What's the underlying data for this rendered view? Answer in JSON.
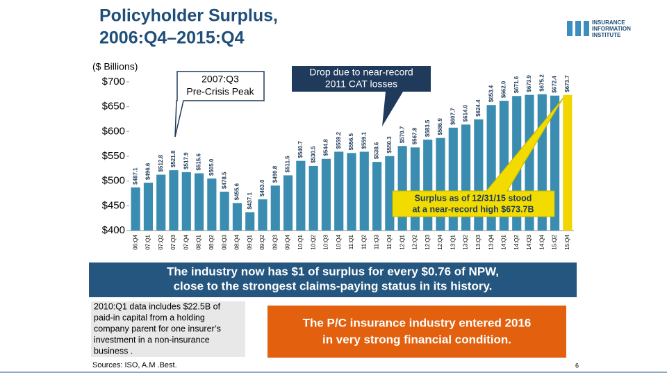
{
  "chart_data": {
    "type": "bar",
    "title": [
      "Policyholder Surplus,",
      "2006:Q4–2015:Q4"
    ],
    "y_label": "($ Billions)",
    "categories": [
      "06:Q4",
      "07:Q1",
      "07:Q2",
      "07:Q3",
      "07:Q4",
      "08:Q1",
      "08:Q2",
      "08:Q3",
      "08:Q4",
      "09:Q1",
      "09:Q2",
      "09:Q3",
      "09:Q4",
      "10:Q1",
      "10:Q2",
      "10:Q3",
      "10:Q4",
      "11:Q1",
      "11:Q2",
      "11:Q3",
      "11:Q4",
      "12:Q1",
      "12:Q2",
      "12:Q3",
      "12:Q4",
      "13:Q1",
      "13:Q2",
      "13:Q3",
      "13:Q4",
      "14:Q1",
      "14:Q2",
      "14:Q3",
      "14:Q4",
      "15:Q2",
      "15:Q4"
    ],
    "values": [
      487.1,
      496.6,
      512.8,
      521.8,
      517.9,
      515.6,
      505.0,
      478.5,
      455.6,
      437.1,
      463.0,
      490.8,
      511.5,
      540.7,
      530.5,
      544.8,
      559.2,
      556.5,
      559.1,
      538.6,
      550.3,
      570.7,
      567.8,
      583.5,
      586.9,
      607.7,
      614.0,
      624.4,
      653.4,
      662.0,
      671.6,
      673.9,
      675.2,
      672.4,
      673.7
    ],
    "value_labels": [
      "$487.1",
      "$496.6",
      "$512.8",
      "$521.8",
      "$517.9",
      "$515.6",
      "$505.0",
      "$478.5",
      "$455.6",
      "$437.1",
      "$463.0",
      "$490.8",
      "$511.5",
      "$540.7",
      "$530.5",
      "$544.8",
      "$559.2",
      "$556.5",
      "$559.1",
      "$538.6",
      "$550.3",
      "$570.7",
      "$567.8",
      "$583.5",
      "$586.9",
      "$607.7",
      "$614.0",
      "$624.4",
      "$653.4",
      "$662.0",
      "$671.6",
      "$673.9",
      "$675.2",
      "$672.4",
      "$673.7"
    ],
    "colors": [
      "#3a8db0",
      "#3a8db0",
      "#3a8db0",
      "#3a8db0",
      "#3a8db0",
      "#3a8db0",
      "#3a8db0",
      "#3a8db0",
      "#3a8db0",
      "#3a8db0",
      "#3a8db0",
      "#3a8db0",
      "#3a8db0",
      "#3a8db0",
      "#3a8db0",
      "#3a8db0",
      "#3a8db0",
      "#3a8db0",
      "#3a8db0",
      "#3a8db0",
      "#3a8db0",
      "#3a8db0",
      "#3a8db0",
      "#3a8db0",
      "#3a8db0",
      "#3a8db0",
      "#3a8db0",
      "#3a8db0",
      "#3a8db0",
      "#3a8db0",
      "#3a8db0",
      "#3a8db0",
      "#3a8db0",
      "#3a8db0",
      "#f2d600"
    ],
    "ylim": [
      400,
      700
    ],
    "yticks": [
      {
        "value": 400,
        "label": "$400"
      },
      {
        "value": 450,
        "label": "$450"
      },
      {
        "value": 500,
        "label": "$500"
      },
      {
        "value": 550,
        "label": "$550"
      },
      {
        "value": 600,
        "label": "$600"
      },
      {
        "value": 650,
        "label": "$650"
      },
      {
        "value": 700,
        "label": "$700"
      }
    ],
    "grid": false,
    "annotations": [
      [
        "2007:Q3",
        "Pre-Crisis Peak"
      ],
      [
        "Drop due to near-record",
        "2011 CAT losses"
      ],
      [
        "Surplus as of 12/31/15 stood",
        "at a near-record high $673.7B"
      ]
    ]
  },
  "logo": [
    "INSURANCE",
    "INFORMATION",
    "INSTITUTE"
  ],
  "banner": [
    "The industry now has $1 of surplus for every $0.76 of NPW,",
    "close to the strongest claims-paying status in its history."
  ],
  "note": [
    "2010:Q1 data includes $22.5B of",
    "paid-in capital from a holding",
    "company parent for one insurer’s",
    "investment in a non-insurance",
    "business ."
  ],
  "conclusion": [
    "The P/C insurance industry entered 2016",
    "in very strong financial condition."
  ],
  "sources": "Sources: ISO, A.M .Best.",
  "page_number": "6"
}
